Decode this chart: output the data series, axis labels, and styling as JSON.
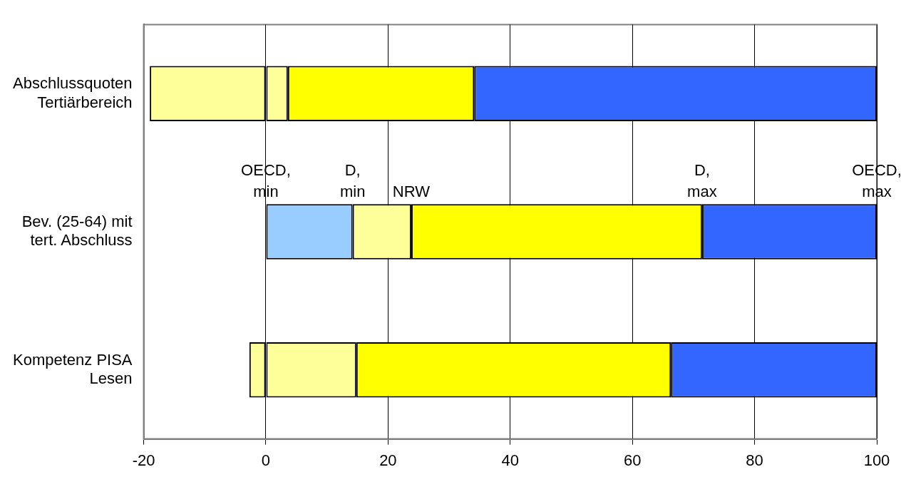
{
  "chart_data": {
    "type": "bar",
    "orientation": "horizontal",
    "stacked": true,
    "categories": [
      "Abschlussquoten Tertiärbereich",
      "Bev. (25-64) mit tert. Abschluss",
      "Kompetenz PISA Lesen"
    ],
    "series": [
      {
        "colors": [
          "#ffff99",
          "#99ccff",
          "#ffff99"
        ],
        "values": [
          -19,
          14.2,
          -2.7
        ]
      },
      {
        "color": "#ffff99",
        "values": [
          3.6,
          9.6,
          14.8
        ]
      },
      {
        "color": "#ffff00",
        "values": [
          30.5,
          47.6,
          51.5
        ]
      },
      {
        "color": "#3366ff",
        "values": [
          65.9,
          28.6,
          33.7
        ]
      }
    ],
    "xlim": [
      -20,
      100
    ],
    "xticks": [
      -20,
      0,
      20,
      40,
      60,
      80,
      100
    ],
    "grid": "x",
    "legend": false,
    "annotations": [
      {
        "text": "OECD, min",
        "x": 0,
        "y": "Bev. (25-64) mit tert. Abschluss"
      },
      {
        "text": "D, min",
        "x": 14.2,
        "y": "Bev. (25-64) mit tert. Abschluss"
      },
      {
        "text": "NRW",
        "x": 23.8,
        "y": "Bev. (25-64) mit tert. Abschluss"
      },
      {
        "text": "D, max",
        "x": 71.4,
        "y": "Bev. (25-64) mit tert. Abschluss"
      },
      {
        "text": "OECD, max",
        "x": 100,
        "y": "Bev. (25-64) mit tert. Abschluss"
      }
    ]
  }
}
